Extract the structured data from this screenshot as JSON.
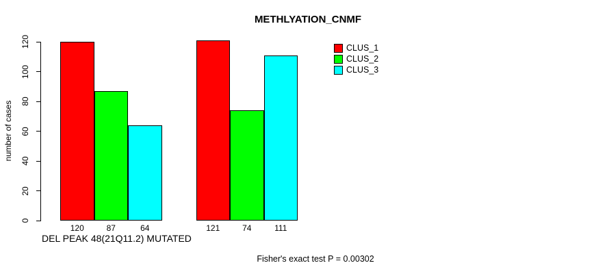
{
  "chart_data": {
    "type": "bar",
    "title": "METHLYATION_CNMF",
    "ylabel": "number of cases",
    "xlabel": "DEL PEAK 48(21Q11.2) MUTATED",
    "note": "Fisher's exact test P = 0.00302",
    "ylim": [
      0,
      120
    ],
    "yticks": [
      0,
      20,
      40,
      60,
      80,
      100,
      120
    ],
    "grid": false,
    "legend_position": "top-right",
    "group_count": 2,
    "series": [
      {
        "name": "CLUS_1",
        "color": "#ff0000",
        "values": [
          120,
          121
        ]
      },
      {
        "name": "CLUS_2",
        "color": "#00ff00",
        "values": [
          87,
          74
        ]
      },
      {
        "name": "CLUS_3",
        "color": "#00ffff",
        "values": [
          64,
          111
        ]
      }
    ],
    "bar_value_labels": [
      [
        "120",
        "87",
        "64"
      ],
      [
        "121",
        "74",
        "111"
      ]
    ]
  }
}
